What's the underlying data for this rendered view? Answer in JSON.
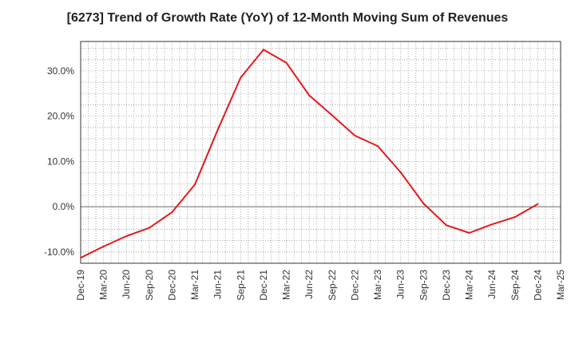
{
  "chart_data": {
    "type": "line",
    "title": "[6273]  Trend of Growth Rate (YoY) of 12-Month Moving Sum of Revenues",
    "xlabel": "",
    "ylabel": "",
    "x_tick_labels": [
      "Dec-19",
      "Mar-20",
      "Jun-20",
      "Sep-20",
      "Dec-20",
      "Mar-21",
      "Jun-21",
      "Sep-21",
      "Dec-21",
      "Mar-22",
      "Jun-22",
      "Sep-22",
      "Dec-22",
      "Mar-23",
      "Jun-23",
      "Sep-23",
      "Dec-23",
      "Mar-24",
      "Jun-24",
      "Sep-24",
      "Dec-24",
      "Mar-25"
    ],
    "y_ticks": [
      -10,
      0,
      10,
      20,
      30
    ],
    "y_tick_labels": [
      "-10.0%",
      "0.0%",
      "10.0%",
      "20.0%",
      "30.0%"
    ],
    "ylim": [
      -12.5,
      36.5
    ],
    "grid": true,
    "line_color": "#e41a1c",
    "series": [
      {
        "x": [
          "Dec-19",
          "Mar-20",
          "Jun-20",
          "Sep-20",
          "Dec-20",
          "Mar-21",
          "Jun-21",
          "Sep-21",
          "Dec-21",
          "Mar-22",
          "Jun-22",
          "Sep-22",
          "Dec-22",
          "Mar-23",
          "Jun-23",
          "Sep-23",
          "Dec-23",
          "Mar-24",
          "Jun-24",
          "Sep-24",
          "Dec-24"
        ],
        "values": [
          -11.3,
          -8.8,
          -6.5,
          -4.7,
          -1.2,
          4.9,
          17.0,
          28.5,
          34.7,
          31.8,
          24.6,
          20.2,
          15.7,
          13.4,
          7.6,
          0.7,
          -4.1,
          -5.8,
          -3.9,
          -2.3,
          0.6
        ]
      }
    ]
  }
}
